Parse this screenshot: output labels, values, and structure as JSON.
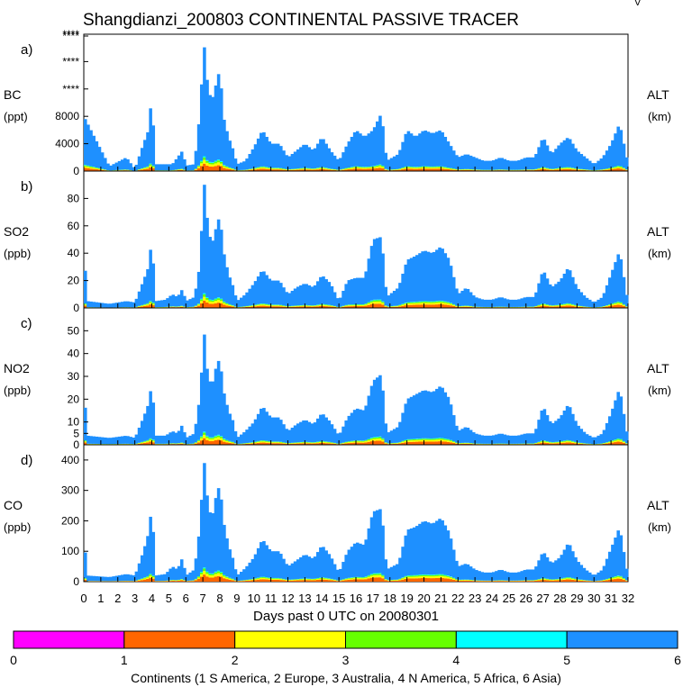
{
  "chart_data": {
    "type": "area",
    "title": "Shangdianzi_200803 CONTINENTAL PASSIVE TRACER",
    "xlabel": "Days past 0 UTC on 20080301",
    "xlim": [
      0,
      32
    ],
    "x_ticks": [
      "0",
      "1",
      "2",
      "3",
      "4",
      "5",
      "6",
      "7",
      "8",
      "9",
      "10",
      "11",
      "12",
      "13",
      "14",
      "15",
      "16",
      "17",
      "18",
      "19",
      "20",
      "21",
      "22",
      "23",
      "24",
      "25",
      "26",
      "27",
      "28",
      "29",
      "30",
      "31",
      "32"
    ],
    "series_colors": [
      "#ff00ff",
      "#ff6600",
      "#ffff00",
      "#66ff00",
      "#00ffff",
      "#1e90ff"
    ],
    "panels": [
      {
        "label": "a)",
        "species": "BC",
        "unit": "(ppt)",
        "right_label": "ALT",
        "right_unit": "(km)",
        "ylim": [
          0,
          20000
        ],
        "yticks": [
          {
            "v": 0,
            "t": "0"
          },
          {
            "v": 4000,
            "t": "4000"
          },
          {
            "v": 8000,
            "t": "8000"
          },
          {
            "v": 12000,
            "t": "****"
          },
          {
            "v": 16000,
            "t": "****"
          },
          {
            "v": 20000,
            "t": "****"
          },
          {
            "v": 24000,
            "t": "****"
          }
        ],
        "total_days": [
          0,
          8000,
          1.5,
          700,
          2.5,
          2000,
          3.0,
          300,
          3.5,
          4000,
          3.8,
          6000,
          3.9,
          9000,
          4.0,
          10000,
          4.1,
          6000,
          4.2,
          1000,
          4.8,
          1000,
          5.2,
          1000,
          5.5,
          2000,
          5.8,
          3000,
          6.0,
          800,
          6.5,
          1000,
          6.8,
          8000,
          7.0,
          16000,
          7.1,
          18500,
          7.2,
          14000,
          7.5,
          10000,
          7.8,
          13000,
          8.0,
          15000,
          8.2,
          8000,
          8.5,
          5000,
          8.8,
          3000,
          9.0,
          1000,
          9.5,
          1500,
          10.0,
          3500,
          10.5,
          6000,
          11.0,
          4000,
          11.5,
          4000,
          12.0,
          2000,
          12.5,
          3000,
          13.0,
          4000,
          13.5,
          3000,
          14.0,
          5000,
          14.5,
          3000,
          15.0,
          1500,
          15.5,
          4000,
          16.0,
          6000,
          16.5,
          5000,
          17.0,
          6000,
          17.5,
          8500,
          17.8,
          1500,
          18.5,
          2500,
          19.0,
          6000,
          19.5,
          5000,
          20.0,
          6000,
          20.5,
          5500,
          21.0,
          6000,
          21.5,
          4000,
          22.0,
          2000,
          22.5,
          2500,
          23.0,
          2000,
          23.5,
          1500,
          24.0,
          1500,
          24.5,
          2000,
          25.0,
          1500,
          25.5,
          1500,
          26.0,
          2000,
          26.5,
          2000,
          27.0,
          5000,
          27.5,
          2500,
          28.0,
          4000,
          28.5,
          5000,
          29.0,
          3000,
          29.5,
          2000,
          30.0,
          1000,
          30.5,
          2000,
          31.0,
          4000,
          31.5,
          7000,
          32.0,
          1000
        ],
        "scale": 100
      },
      {
        "label": "b)",
        "species": "SO2",
        "unit": "(ppb)",
        "right_label": "ALT",
        "right_unit": "(km)",
        "ylim": [
          0,
          100
        ],
        "yticks": [
          {
            "v": 0,
            "t": "0"
          },
          {
            "v": 20,
            "t": "20"
          },
          {
            "v": 40,
            "t": "40"
          },
          {
            "v": 60,
            "t": "60"
          },
          {
            "v": 80,
            "t": "80"
          }
        ],
        "total_days": [
          0,
          43,
          0.2,
          5,
          1.5,
          3,
          2.5,
          5,
          3.0,
          4,
          3.5,
          20,
          3.8,
          30,
          3.9,
          42,
          4.0,
          45,
          4.1,
          30,
          4.2,
          5,
          4.8,
          6,
          5.2,
          10,
          5.5,
          8,
          5.8,
          14,
          6.0,
          5,
          6.5,
          8,
          6.8,
          30,
          7.0,
          75,
          7.1,
          93,
          7.2,
          70,
          7.5,
          45,
          7.8,
          60,
          8.0,
          68,
          8.2,
          42,
          8.5,
          25,
          8.8,
          15,
          9.0,
          5,
          9.5,
          10,
          10.0,
          18,
          10.5,
          28,
          11.0,
          20,
          11.5,
          20,
          12.0,
          10,
          12.5,
          15,
          13.0,
          18,
          13.5,
          15,
          14.0,
          24,
          14.5,
          18,
          15.0,
          5,
          15.5,
          20,
          16.0,
          22,
          16.5,
          22,
          17.0,
          50,
          17.5,
          52,
          17.8,
          8,
          18.5,
          15,
          19.0,
          35,
          19.5,
          38,
          20.0,
          42,
          20.5,
          40,
          21.0,
          45,
          21.5,
          35,
          22.0,
          10,
          22.5,
          15,
          23.0,
          8,
          23.5,
          6,
          24.0,
          6,
          24.5,
          8,
          25.0,
          6,
          25.5,
          6,
          26.0,
          8,
          26.5,
          8,
          27.0,
          28,
          27.5,
          15,
          28.0,
          20,
          28.5,
          30,
          29.0,
          15,
          29.5,
          8,
          30.0,
          4,
          30.5,
          8,
          31.0,
          25,
          31.5,
          42,
          32.0,
          3
        ],
        "scale": 1
      },
      {
        "label": "c)",
        "species": "NO2",
        "unit": "(ppb)",
        "right_label": "ALT",
        "right_unit": "(km)",
        "ylim": [
          0,
          60
        ],
        "yticks": [
          {
            "v": 0,
            "t": "0"
          },
          {
            "v": 5,
            "t": "5"
          },
          {
            "v": 10,
            "t": "10"
          },
          {
            "v": 20,
            "t": "20"
          },
          {
            "v": 30,
            "t": "30"
          },
          {
            "v": 40,
            "t": "40"
          },
          {
            "v": 50,
            "t": "50"
          }
        ],
        "total_days": [
          0,
          25,
          0.2,
          4,
          1.5,
          3,
          2.5,
          4,
          3.0,
          3,
          3.5,
          12,
          3.8,
          18,
          3.9,
          23,
          4.0,
          26,
          4.1,
          17,
          4.2,
          4,
          4.8,
          4,
          5.2,
          6,
          5.5,
          5,
          5.8,
          9,
          6.0,
          3,
          6.5,
          5,
          6.8,
          20,
          7.0,
          40,
          7.1,
          50,
          7.2,
          35,
          7.5,
          25,
          7.8,
          35,
          8.0,
          38,
          8.2,
          24,
          8.5,
          15,
          8.8,
          10,
          9.0,
          3,
          9.5,
          6,
          10.0,
          10,
          10.5,
          17,
          11.0,
          12,
          11.5,
          12,
          12.0,
          6,
          12.5,
          9,
          13.0,
          11,
          13.5,
          9,
          14.0,
          14,
          14.5,
          10,
          15.0,
          4,
          15.5,
          12,
          16.0,
          16,
          16.5,
          15,
          17.0,
          28,
          17.5,
          31,
          17.8,
          5,
          18.5,
          8,
          19.0,
          20,
          19.5,
          22,
          20.0,
          24,
          20.5,
          23,
          21.0,
          26,
          21.5,
          20,
          22.0,
          6,
          22.5,
          8,
          23.0,
          5,
          23.5,
          4,
          24.0,
          4,
          24.5,
          5,
          25.0,
          4,
          25.5,
          4,
          26.0,
          5,
          26.5,
          5,
          27.0,
          17,
          27.5,
          9,
          28.0,
          12,
          28.5,
          18,
          29.0,
          9,
          29.5,
          5,
          30.0,
          3,
          30.5,
          5,
          31.0,
          14,
          31.5,
          25,
          32.0,
          2
        ],
        "scale": 1
      },
      {
        "label": "d)",
        "species": "CO",
        "unit": "(ppb)",
        "right_label": "ALT",
        "right_unit": "(km)",
        "ylim": [
          0,
          450
        ],
        "yticks": [
          {
            "v": 0,
            "t": "0"
          },
          {
            "v": 100,
            "t": "100"
          },
          {
            "v": 200,
            "t": "200"
          },
          {
            "v": 300,
            "t": "300"
          },
          {
            "v": 400,
            "t": "400"
          }
        ],
        "total_days": [
          0,
          150,
          0.2,
          20,
          1.5,
          15,
          2.5,
          25,
          3.0,
          20,
          3.5,
          100,
          3.8,
          160,
          3.9,
          210,
          4.0,
          230,
          4.1,
          150,
          4.2,
          20,
          4.8,
          25,
          5.2,
          50,
          5.5,
          40,
          5.8,
          80,
          6.0,
          20,
          6.5,
          40,
          6.8,
          170,
          7.0,
          340,
          7.1,
          400,
          7.2,
          300,
          7.5,
          200,
          7.8,
          290,
          8.0,
          320,
          8.2,
          200,
          8.5,
          120,
          8.8,
          70,
          9.0,
          20,
          9.5,
          45,
          10.0,
          80,
          10.5,
          140,
          11.0,
          100,
          11.5,
          100,
          12.0,
          50,
          12.5,
          70,
          13.0,
          90,
          13.5,
          75,
          14.0,
          120,
          14.5,
          85,
          15.0,
          30,
          15.5,
          100,
          16.0,
          130,
          16.5,
          120,
          17.0,
          230,
          17.5,
          240,
          17.8,
          40,
          18.5,
          60,
          19.0,
          170,
          19.5,
          180,
          20.0,
          200,
          20.5,
          190,
          21.0,
          210,
          21.5,
          160,
          22.0,
          50,
          22.5,
          60,
          23.0,
          40,
          23.5,
          30,
          24.0,
          30,
          24.5,
          40,
          25.0,
          30,
          25.5,
          30,
          26.0,
          40,
          26.5,
          40,
          27.0,
          100,
          27.5,
          60,
          28.0,
          80,
          28.5,
          130,
          29.0,
          70,
          29.5,
          40,
          30.0,
          20,
          30.5,
          40,
          31.0,
          110,
          31.5,
          180,
          32.0,
          15
        ],
        "scale": 1
      }
    ],
    "colorbar": {
      "tick_labels": [
        "0",
        "1",
        "2",
        "3",
        "4",
        "5",
        "6"
      ],
      "colors": [
        "#ff00ff",
        "#ff6600",
        "#ffff00",
        "#66ff00",
        "#00ffff",
        "#1e90ff"
      ],
      "caption": "Continents (1 S America, 2 Europe, 3 Australia, 4 N America, 5 Africa, 6 Asia)"
    },
    "corner_mark": "V"
  }
}
